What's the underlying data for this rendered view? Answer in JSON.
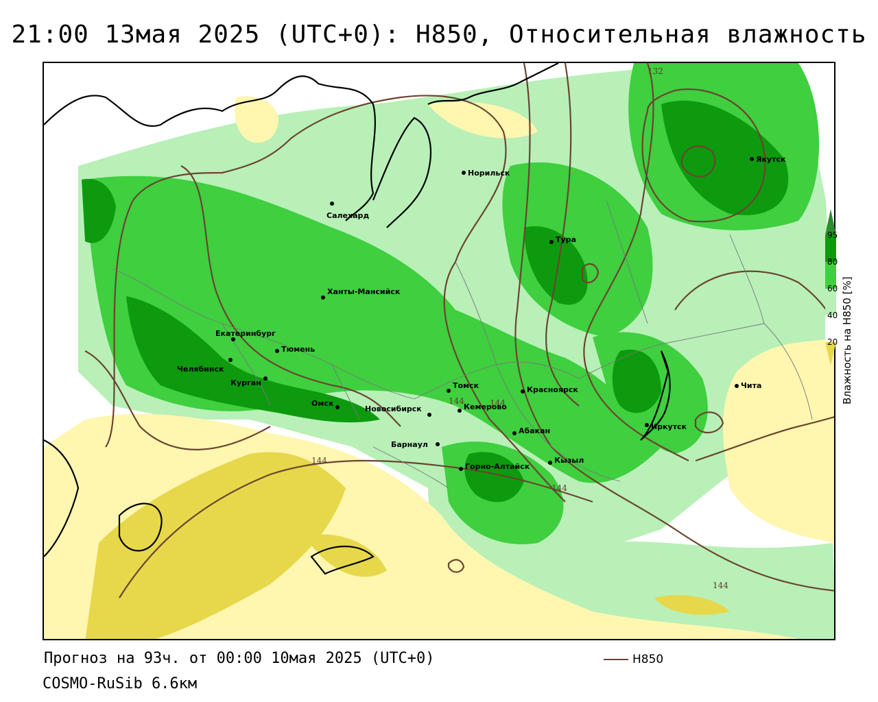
{
  "title": "21:00 13мая 2025 (UTC+0): H850, Относительная влажность",
  "footer": {
    "forecast": "Прогноз на 93ч. от 00:00 10мая 2025 (UTC+0)",
    "model": "COSMO-RuSib 6.6км",
    "line_legend": "H850"
  },
  "colorbar": {
    "title": "Влажность на H850 [%]",
    "ticks": [
      "95",
      "80",
      "60",
      "40",
      "20"
    ],
    "colors": {
      "above95": "#2e8b2e",
      "c80_95": "#0e9a0e",
      "c60_80": "#3fcf3f",
      "c40_60": "#b8f0b8",
      "c20_40": "#ffffff",
      "c0_20": "#fff6b0",
      "below20": "#e6d84a"
    }
  },
  "contours": {
    "labels": [
      "132",
      "144",
      "144",
      "144",
      "144",
      "144"
    ],
    "color": "#6b4430"
  },
  "cities": [
    {
      "name": "Норильск"
    },
    {
      "name": "Якутск"
    },
    {
      "name": "Салехард"
    },
    {
      "name": "Тура"
    },
    {
      "name": "Ханты-Мансийск"
    },
    {
      "name": "Екатеринбург"
    },
    {
      "name": "Тюмень"
    },
    {
      "name": "Челябинск"
    },
    {
      "name": "Курган"
    },
    {
      "name": "Омск"
    },
    {
      "name": "Новосибирск"
    },
    {
      "name": "Томск"
    },
    {
      "name": "Кемерово"
    },
    {
      "name": "Красноярск"
    },
    {
      "name": "Чита"
    },
    {
      "name": "Иркутск"
    },
    {
      "name": "Абакан"
    },
    {
      "name": "Барнаул"
    },
    {
      "name": "Кызыл"
    },
    {
      "name": "Горно-Алтайск"
    }
  ]
}
